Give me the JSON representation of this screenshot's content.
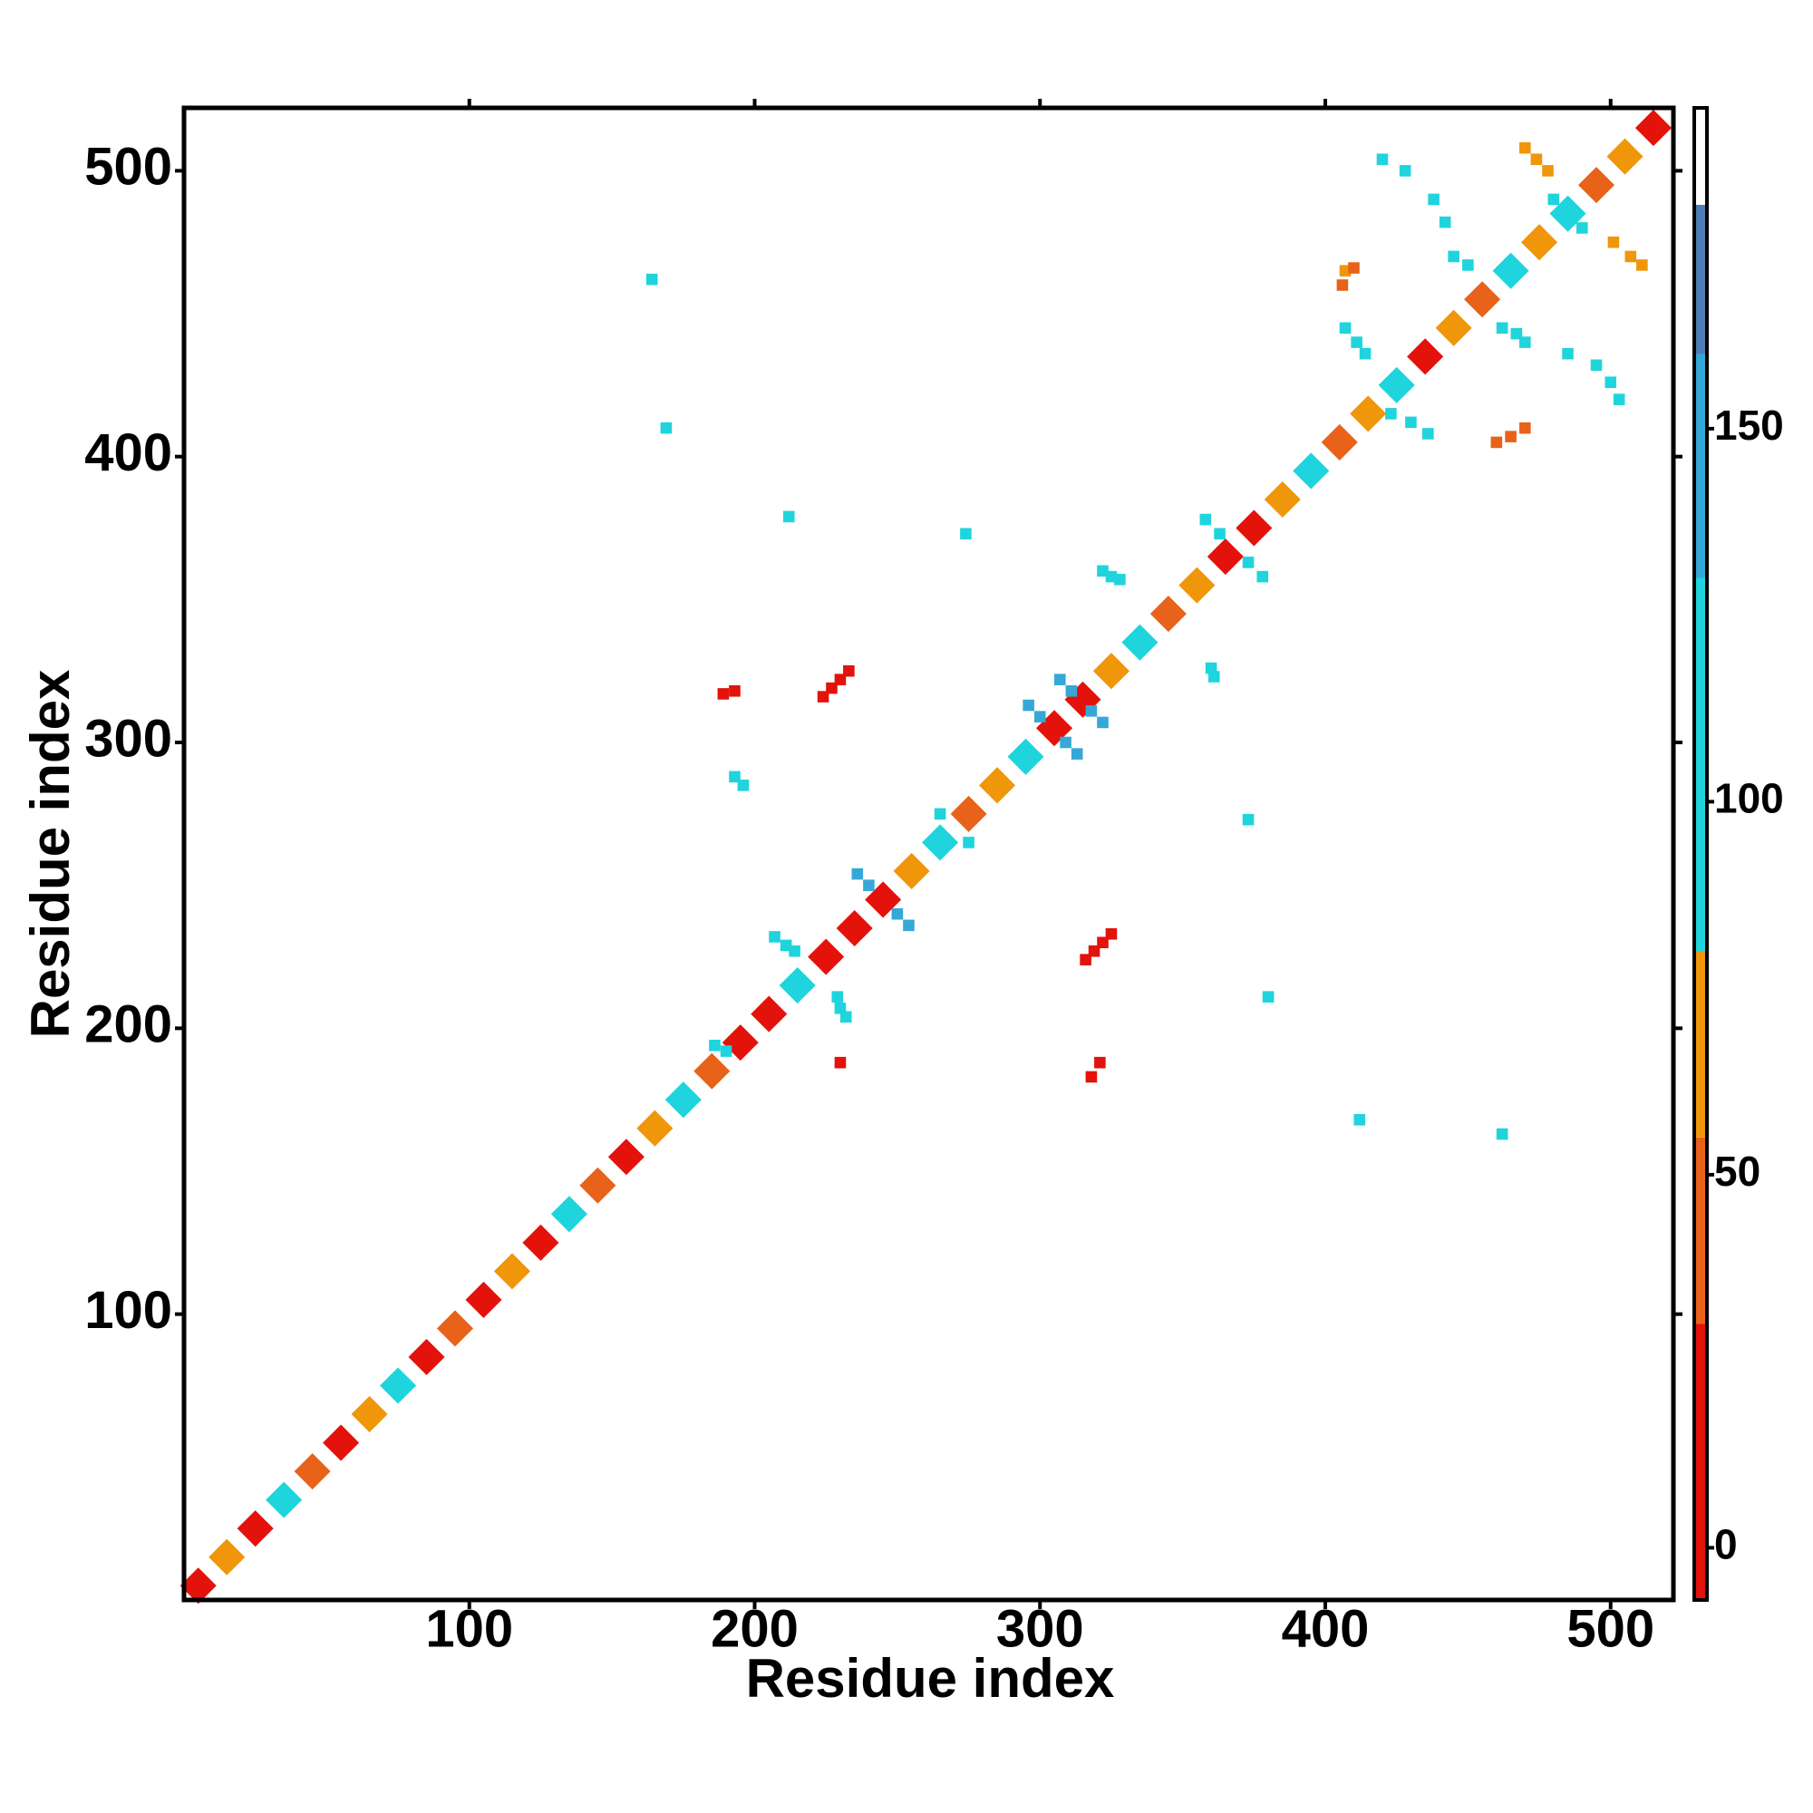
{
  "chart_data": {
    "type": "contact-map",
    "x_label": "Residue index",
    "y_label": "Residue index",
    "xlim": [
      0,
      522
    ],
    "ylim": [
      0,
      522
    ],
    "xticks": [
      100,
      200,
      300,
      400,
      500
    ],
    "yticks": [
      100,
      200,
      300,
      400,
      500
    ],
    "x": [
      5,
      15,
      25,
      35,
      45,
      55,
      65,
      75,
      85,
      95,
      105,
      115,
      125,
      135,
      145,
      155,
      165,
      175,
      185,
      195,
      205,
      215,
      225,
      235,
      245,
      255,
      265,
      275,
      285,
      295,
      305,
      315,
      325,
      335,
      345,
      355,
      365,
      375,
      385,
      395,
      405,
      415,
      425,
      435,
      445,
      455,
      465,
      475,
      485,
      495,
      505,
      515,
      224,
      227,
      230,
      233,
      316,
      319,
      322,
      325,
      236,
      240,
      250,
      254,
      296,
      300,
      309,
      313,
      307,
      311,
      318,
      322,
      358,
      363,
      373,
      378,
      265,
      275,
      480,
      490,
      207,
      211,
      214,
      229,
      230,
      232,
      322,
      325,
      328,
      360,
      361,
      193,
      196,
      169,
      164,
      212,
      274,
      189,
      193,
      373,
      380,
      412,
      462,
      186,
      190,
      230,
      321,
      318,
      460,
      465,
      470,
      423,
      430,
      436,
      406,
      407,
      410,
      407,
      411,
      414,
      445,
      450,
      462,
      467,
      470,
      485,
      495,
      500,
      503,
      470,
      474,
      478,
      501,
      507,
      511,
      420,
      428,
      438,
      442
    ],
    "y": [
      5,
      15,
      25,
      35,
      45,
      55,
      65,
      75,
      85,
      95,
      105,
      115,
      125,
      135,
      145,
      155,
      165,
      175,
      185,
      195,
      205,
      215,
      225,
      235,
      245,
      255,
      265,
      275,
      285,
      295,
      305,
      315,
      325,
      335,
      345,
      355,
      365,
      375,
      385,
      395,
      405,
      415,
      425,
      435,
      445,
      455,
      465,
      475,
      485,
      495,
      505,
      515,
      316,
      319,
      322,
      325,
      224,
      227,
      230,
      233,
      254,
      250,
      240,
      236,
      313,
      309,
      300,
      296,
      322,
      318,
      311,
      307,
      378,
      373,
      363,
      358,
      275,
      265,
      490,
      480,
      232,
      229,
      227,
      211,
      207,
      204,
      360,
      358,
      357,
      326,
      323,
      288,
      285,
      410,
      462,
      379,
      373,
      317,
      318,
      273,
      211,
      168,
      163,
      194,
      192,
      188,
      188,
      183,
      405,
      407,
      410,
      415,
      412,
      408,
      460,
      465,
      466,
      445,
      440,
      436,
      470,
      467,
      445,
      443,
      440,
      436,
      432,
      426,
      420,
      508,
      504,
      500,
      475,
      470,
      467,
      504,
      500,
      490,
      482
    ],
    "values": [
      20,
      60,
      10,
      100,
      40,
      20,
      60,
      100,
      10,
      40,
      20,
      60,
      10,
      100,
      40,
      20,
      60,
      100,
      40,
      10,
      20,
      110,
      15,
      10,
      20,
      60,
      100,
      40,
      60,
      100,
      10,
      20,
      60,
      100,
      40,
      60,
      10,
      20,
      60,
      100,
      40,
      60,
      100,
      20,
      60,
      40,
      100,
      60,
      110,
      40,
      60,
      20,
      10,
      10,
      15,
      20,
      10,
      10,
      15,
      20,
      135,
      135,
      135,
      135,
      140,
      140,
      140,
      140,
      150,
      150,
      150,
      150,
      125,
      125,
      125,
      125,
      115,
      115,
      110,
      110,
      125,
      125,
      125,
      125,
      125,
      125,
      120,
      120,
      120,
      125,
      125,
      110,
      110,
      110,
      110,
      110,
      110,
      15,
      15,
      110,
      110,
      110,
      110,
      110,
      110,
      30,
      10,
      15,
      40,
      40,
      40,
      100,
      100,
      100,
      40,
      60,
      40,
      100,
      100,
      100,
      100,
      100,
      100,
      100,
      100,
      100,
      100,
      100,
      100,
      60,
      60,
      60,
      60,
      60,
      60,
      110,
      110,
      110,
      110
    ],
    "colorbar": {
      "ylim": [
        -7,
        193
      ],
      "yticks": [
        0,
        50,
        100,
        150
      ],
      "bounds": [
        -7,
        30,
        55,
        80,
        130,
        160,
        180,
        193
      ],
      "colors": [
        "#e3120b",
        "#e8621a",
        "#f0960a",
        "#1fd4dc",
        "#35a8d8",
        "#4d7db4",
        "#ffffff"
      ]
    }
  }
}
